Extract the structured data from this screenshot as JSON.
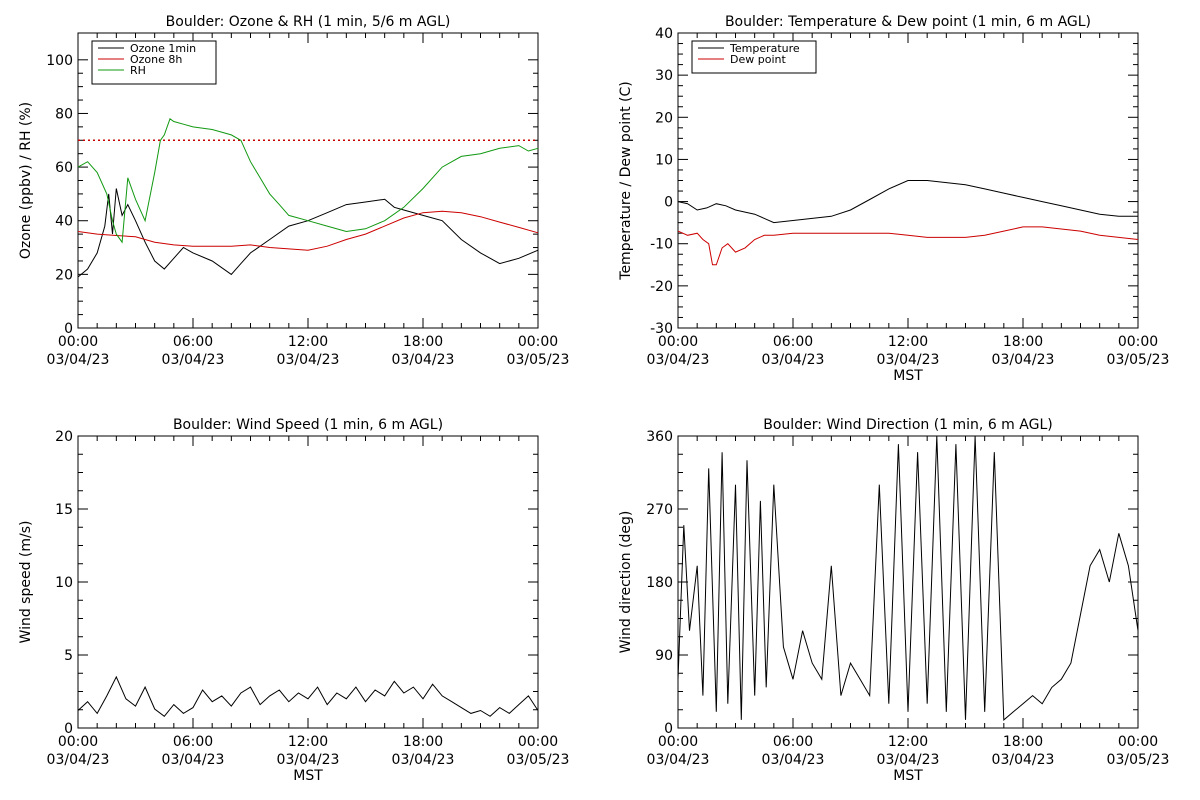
{
  "chart_data": [
    {
      "type": "line",
      "title": "Boulder: Ozone & RH (1 min, 5/6 m AGL)",
      "xlabel": "",
      "ylabel": "Ozone (ppbv) / RH (%)",
      "xlim": [
        0,
        24
      ],
      "ylim": [
        0,
        110
      ],
      "x_tick_labels": [
        [
          "00:00",
          "03/04/23"
        ],
        [
          "06:00",
          "03/04/23"
        ],
        [
          "12:00",
          "03/04/23"
        ],
        [
          "18:00",
          "03/04/23"
        ],
        [
          "00:00",
          "03/05/23"
        ]
      ],
      "y_ticks": [
        0,
        20,
        40,
        60,
        80,
        100
      ],
      "legend_position": "top-left",
      "reference_lines": [
        {
          "y": 70,
          "color": "#cc0000",
          "style": "dotted"
        }
      ],
      "series": [
        {
          "name": "Ozone 1min",
          "color": "#000000",
          "x": [
            0,
            0.5,
            1,
            1.4,
            1.6,
            1.8,
            2.0,
            2.3,
            2.6,
            3.0,
            3.5,
            4.0,
            4.5,
            5.0,
            5.5,
            6,
            7,
            8,
            8.5,
            9,
            10,
            11,
            12,
            13,
            14,
            15,
            16,
            16.5,
            17,
            18,
            19,
            20,
            21,
            22,
            23,
            24
          ],
          "y": [
            19,
            22,
            28,
            38,
            50,
            35,
            52,
            42,
            46,
            40,
            32,
            25,
            22,
            26,
            30,
            28,
            25,
            20,
            24,
            28,
            33,
            38,
            40,
            43,
            46,
            47,
            48,
            45,
            44,
            42,
            40,
            33,
            28,
            24,
            26,
            29
          ]
        },
        {
          "name": "Ozone 8h",
          "color": "#cc0000",
          "x": [
            0,
            1,
            2,
            3,
            4,
            5,
            6,
            7,
            8,
            9,
            10,
            11,
            12,
            13,
            14,
            15,
            16,
            17,
            18,
            19,
            20,
            21,
            22,
            23,
            24
          ],
          "y": [
            36,
            35,
            34.5,
            34,
            32,
            31,
            30.5,
            30.5,
            30.5,
            31,
            30,
            29.5,
            29,
            30.5,
            33,
            35,
            38,
            41,
            43,
            43.5,
            43,
            41.5,
            39.5,
            37.5,
            35.5
          ]
        },
        {
          "name": "RH",
          "color": "#119911",
          "x": [
            0,
            0.5,
            1,
            1.5,
            1.8,
            2.0,
            2.3,
            2.6,
            3.0,
            3.5,
            4.0,
            4.3,
            4.5,
            4.8,
            5.0,
            5.5,
            6,
            7,
            8,
            8.5,
            9,
            9.5,
            10,
            10.5,
            11,
            12,
            13,
            14,
            15,
            16,
            17,
            18,
            19,
            20,
            21,
            22,
            23,
            23.5,
            24
          ],
          "y": [
            60,
            62,
            58,
            50,
            40,
            35,
            32,
            56,
            48,
            40,
            58,
            70,
            72,
            78,
            77,
            76,
            75,
            74,
            72,
            70,
            62,
            56,
            50,
            46,
            42,
            40,
            38,
            36,
            37,
            40,
            45,
            52,
            60,
            64,
            65,
            67,
            68,
            66,
            67
          ]
        }
      ]
    },
    {
      "type": "line",
      "title": "Boulder: Temperature & Dew point (1 min, 6 m AGL)",
      "xlabel": "MST",
      "ylabel": "Temperature / Dew point (C)",
      "xlim": [
        0,
        24
      ],
      "ylim": [
        -30,
        40
      ],
      "x_tick_labels": [
        [
          "00:00",
          "03/04/23"
        ],
        [
          "06:00",
          "03/04/23"
        ],
        [
          "12:00",
          "03/04/23"
        ],
        [
          "18:00",
          "03/04/23"
        ],
        [
          "00:00",
          "03/05/23"
        ]
      ],
      "y_ticks": [
        -30,
        -20,
        -10,
        0,
        10,
        20,
        30,
        40
      ],
      "legend_position": "top-left",
      "series": [
        {
          "name": "Temperature",
          "color": "#000000",
          "x": [
            0,
            0.5,
            1,
            1.5,
            2,
            2.5,
            3,
            3.5,
            4,
            4.5,
            5,
            6,
            7,
            8,
            9,
            10,
            11,
            12,
            13,
            14,
            15,
            16,
            17,
            18,
            19,
            20,
            21,
            22,
            23,
            24
          ],
          "y": [
            0,
            -0.5,
            -2,
            -1.5,
            -0.5,
            -1,
            -2,
            -2.5,
            -3,
            -4,
            -5,
            -4.5,
            -4,
            -3.5,
            -2,
            0.5,
            3,
            5,
            5,
            4.5,
            4,
            3,
            2,
            1,
            0,
            -1,
            -2,
            -3,
            -3.5,
            -3.5
          ]
        },
        {
          "name": "Dew point",
          "color": "#cc0000",
          "x": [
            0,
            0.5,
            1,
            1.3,
            1.6,
            1.8,
            2.0,
            2.3,
            2.6,
            3.0,
            3.5,
            4.0,
            4.5,
            5,
            6,
            7,
            8,
            9,
            10,
            11,
            12,
            13,
            14,
            15,
            16,
            17,
            18,
            19,
            20,
            21,
            22,
            23,
            24
          ],
          "y": [
            -7,
            -8,
            -7.5,
            -9,
            -10,
            -15,
            -15,
            -11,
            -10,
            -12,
            -11,
            -9,
            -8,
            -8,
            -7.5,
            -7.5,
            -7.5,
            -7.5,
            -7.5,
            -7.5,
            -8,
            -8.5,
            -8.5,
            -8.5,
            -8,
            -7,
            -6,
            -6,
            -6.5,
            -7,
            -8,
            -8.5,
            -9
          ]
        }
      ]
    },
    {
      "type": "line",
      "title": "Boulder: Wind Speed (1 min, 6 m AGL)",
      "xlabel": "MST",
      "ylabel": "Wind speed (m/s)",
      "xlim": [
        0,
        24
      ],
      "ylim": [
        0,
        20
      ],
      "x_tick_labels": [
        [
          "00:00",
          "03/04/23"
        ],
        [
          "06:00",
          "03/04/23"
        ],
        [
          "12:00",
          "03/04/23"
        ],
        [
          "18:00",
          "03/04/23"
        ],
        [
          "00:00",
          "03/05/23"
        ]
      ],
      "y_ticks": [
        0,
        5,
        10,
        15,
        20
      ],
      "series": [
        {
          "name": "",
          "color": "#000000",
          "x": [
            0,
            0.5,
            1,
            1.5,
            2,
            2.5,
            3,
            3.5,
            4,
            4.5,
            5,
            5.5,
            6,
            6.5,
            7,
            7.5,
            8,
            8.5,
            9,
            9.5,
            10,
            10.5,
            11,
            11.5,
            12,
            12.5,
            13,
            13.5,
            14,
            14.5,
            15,
            15.5,
            16,
            16.5,
            17,
            17.5,
            18,
            18.5,
            19,
            19.5,
            20,
            20.5,
            21,
            21.5,
            22,
            22.5,
            23,
            23.5,
            24
          ],
          "y": [
            1.2,
            1.8,
            1.0,
            2.2,
            3.5,
            2.0,
            1.5,
            2.8,
            1.3,
            0.8,
            1.6,
            1.0,
            1.4,
            2.6,
            1.8,
            2.2,
            1.5,
            2.4,
            2.8,
            1.6,
            2.2,
            2.6,
            1.8,
            2.4,
            2.0,
            2.8,
            1.6,
            2.4,
            2.0,
            2.8,
            1.8,
            2.6,
            2.2,
            3.2,
            2.4,
            2.8,
            2.0,
            3.0,
            2.2,
            1.8,
            1.4,
            1.0,
            1.2,
            0.8,
            1.4,
            1.0,
            1.6,
            2.2,
            1.2
          ]
        }
      ]
    },
    {
      "type": "line",
      "title": "Boulder: Wind Direction (1 min, 6 m AGL)",
      "xlabel": "MST",
      "ylabel": "Wind direction (deg)",
      "xlim": [
        0,
        24
      ],
      "ylim": [
        0,
        360
      ],
      "x_tick_labels": [
        [
          "00:00",
          "03/04/23"
        ],
        [
          "06:00",
          "03/04/23"
        ],
        [
          "12:00",
          "03/04/23"
        ],
        [
          "18:00",
          "03/04/23"
        ],
        [
          "00:00",
          "03/05/23"
        ]
      ],
      "y_ticks": [
        0,
        90,
        180,
        270,
        360
      ],
      "series": [
        {
          "name": "",
          "color": "#000000",
          "x": [
            0,
            0.3,
            0.6,
            1.0,
            1.3,
            1.6,
            2.0,
            2.3,
            2.6,
            3.0,
            3.3,
            3.6,
            4.0,
            4.3,
            4.6,
            5.0,
            5.5,
            6,
            6.5,
            7,
            7.5,
            8,
            8.5,
            9,
            9.5,
            10,
            10.5,
            11,
            11.5,
            12,
            12.5,
            13,
            13.5,
            14,
            14.5,
            15,
            15.5,
            16,
            16.5,
            17,
            17.5,
            18,
            18.5,
            19,
            19.5,
            20,
            20.5,
            21,
            21.5,
            22,
            22.5,
            23,
            23.5,
            24
          ],
          "y": [
            60,
            250,
            120,
            200,
            40,
            320,
            20,
            340,
            30,
            300,
            10,
            330,
            40,
            280,
            50,
            300,
            100,
            60,
            120,
            80,
            60,
            200,
            40,
            80,
            60,
            40,
            300,
            30,
            350,
            20,
            340,
            30,
            360,
            20,
            350,
            10,
            360,
            20,
            340,
            10,
            20,
            30,
            40,
            30,
            50,
            60,
            80,
            140,
            200,
            220,
            180,
            240,
            200,
            120
          ]
        }
      ]
    }
  ]
}
